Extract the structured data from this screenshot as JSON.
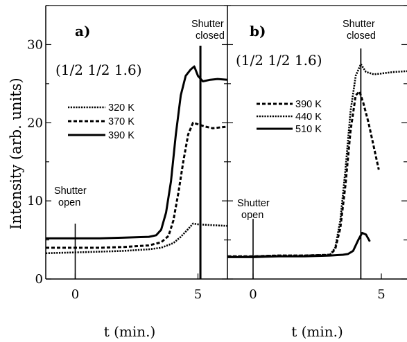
{
  "chart_data": {
    "type": "line",
    "ylabel": "Intensity (arb. units)",
    "ylim": [
      0,
      35
    ],
    "yticks": [
      0,
      10,
      20,
      30
    ],
    "panels": [
      {
        "label": "a)",
        "reflection": "(1/2 1/2 1.6)",
        "xlabel": "t (min.)",
        "xlim": [
          -1.2,
          6.2
        ],
        "xticks": [
          0,
          5
        ],
        "annotations": {
          "open": {
            "label_line1": "Shutter",
            "label_line2": "open",
            "x": 0
          },
          "closed": {
            "label_line1": "Shutter",
            "label_line2": "closed",
            "x": 5.1
          }
        },
        "legend": [
          "320 K",
          "370 K",
          "390 K"
        ],
        "series": [
          {
            "name": "320 K",
            "style": "dotted",
            "x": [
              -1.2,
              0,
              1,
              2,
              3,
              3.5,
              4,
              4.3,
              4.6,
              4.8,
              5.0,
              5.5,
              6.2
            ],
            "y": [
              3.3,
              3.4,
              3.5,
              3.6,
              3.8,
              4.0,
              4.6,
              5.4,
              6.4,
              7.1,
              7.0,
              6.9,
              6.8
            ]
          },
          {
            "name": "370 K",
            "style": "dashed",
            "x": [
              -1.2,
              0,
              1,
              2,
              3,
              3.5,
              3.8,
              4.0,
              4.2,
              4.4,
              4.6,
              4.8,
              5.0,
              5.3,
              5.6,
              6.2
            ],
            "y": [
              4.0,
              4.0,
              4.0,
              4.1,
              4.3,
              4.7,
              5.5,
              7.5,
              11.0,
              15.0,
              18.5,
              20.0,
              19.8,
              19.5,
              19.3,
              19.5
            ]
          },
          {
            "name": "390 K",
            "style": "solid",
            "x": [
              -1.2,
              0,
              1,
              2,
              3,
              3.3,
              3.5,
              3.7,
              3.9,
              4.1,
              4.3,
              4.5,
              4.7,
              4.85,
              5.0,
              5.2,
              5.5,
              5.8,
              6.2
            ],
            "y": [
              5.2,
              5.2,
              5.2,
              5.3,
              5.4,
              5.6,
              6.3,
              8.5,
              12.5,
              18.5,
              23.5,
              26.0,
              26.8,
              27.2,
              26.0,
              25.3,
              25.5,
              25.6,
              25.5
            ]
          }
        ]
      },
      {
        "label": "b)",
        "reflection": "(1/2 1/2 1.6)",
        "xlabel": "t (min.)",
        "xlim": [
          -1.0,
          6.0
        ],
        "xticks": [
          0,
          5
        ],
        "annotations": {
          "open": {
            "label_line1": "Shutter",
            "label_line2": "open",
            "x": 0
          },
          "closed": {
            "label_line1": "Shutter",
            "label_line2": "closed",
            "x": 4.2
          }
        },
        "legend": [
          "390 K",
          "440 K",
          "510 K"
        ],
        "series": [
          {
            "name": "390 K",
            "style": "dashed",
            "x": [
              -1.0,
              0,
              1,
              2,
              3,
              3.2,
              3.4,
              3.6,
              3.8,
              4.0,
              4.15,
              4.3,
              4.5,
              4.7,
              4.9
            ],
            "y": [
              2.9,
              2.9,
              3.0,
              3.0,
              3.1,
              3.8,
              6.5,
              12.0,
              19.0,
              23.5,
              24.0,
              22.5,
              20.0,
              17.0,
              14.0
            ]
          },
          {
            "name": "440 K",
            "style": "dotted",
            "x": [
              -1.0,
              0,
              1,
              2,
              3,
              3.2,
              3.4,
              3.6,
              3.8,
              4.0,
              4.2,
              4.4,
              4.7,
              5.0,
              5.5,
              6.0
            ],
            "y": [
              2.9,
              2.9,
              3.0,
              3.0,
              3.1,
              4.0,
              7.5,
              14.0,
              21.5,
              26.0,
              27.5,
              26.5,
              26.2,
              26.3,
              26.5,
              26.6
            ]
          },
          {
            "name": "510 K",
            "style": "solid",
            "x": [
              -1.0,
              0,
              1,
              2,
              3,
              3.5,
              3.7,
              3.9,
              4.1,
              4.25,
              4.4,
              4.55
            ],
            "y": [
              2.8,
              2.8,
              2.9,
              2.9,
              3.0,
              3.1,
              3.2,
              3.6,
              5.0,
              5.9,
              5.7,
              4.8
            ]
          }
        ]
      }
    ]
  }
}
